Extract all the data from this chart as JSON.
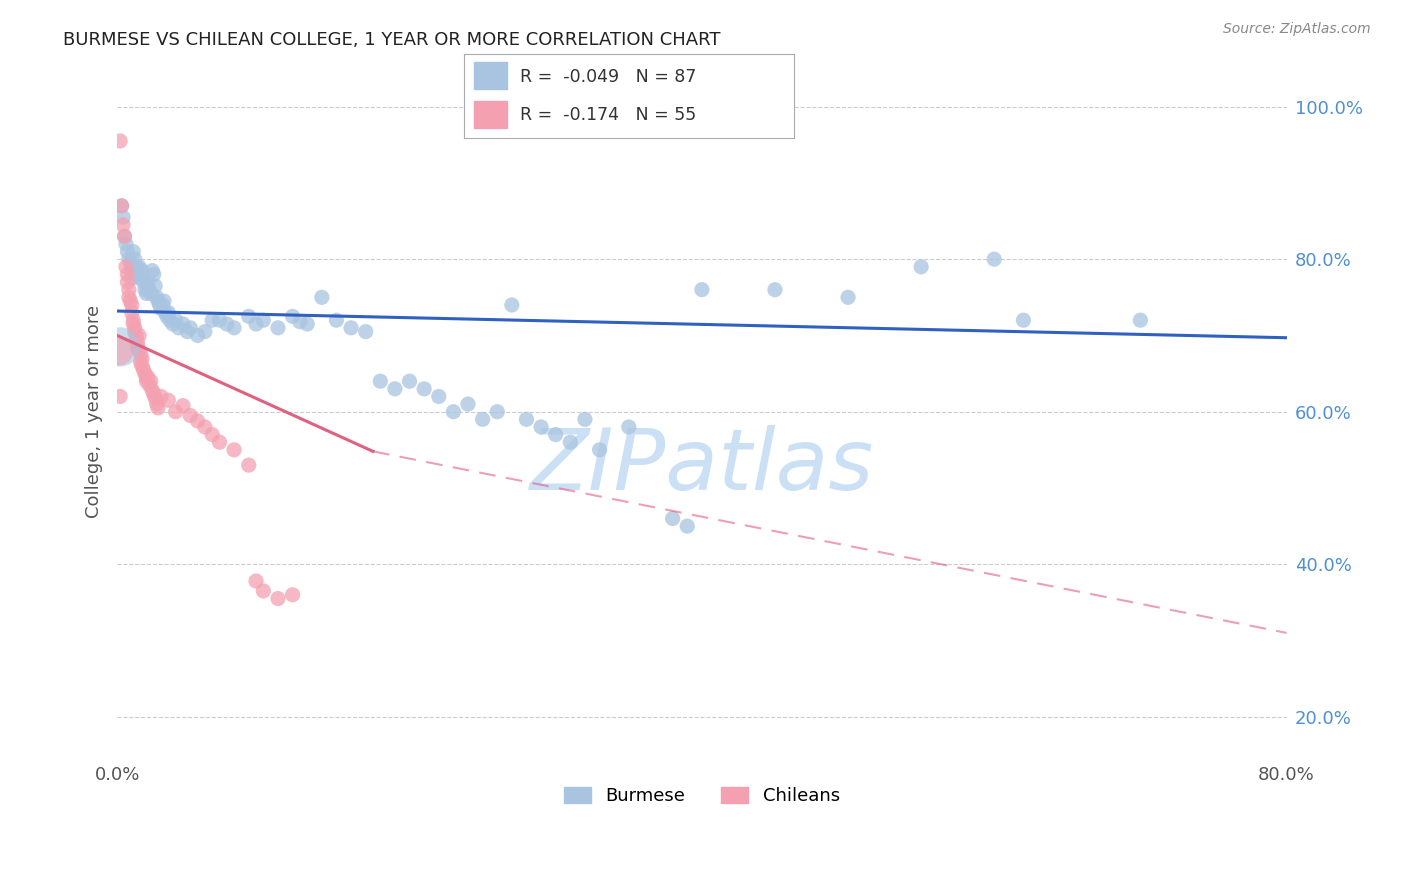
{
  "title": "BURMESE VS CHILEAN COLLEGE, 1 YEAR OR MORE CORRELATION CHART",
  "source": "Source: ZipAtlas.com",
  "ylabel_label": "College, 1 year or more",
  "legend_burmese": "Burmese",
  "legend_chileans": "Chileans",
  "R_burmese": -0.049,
  "N_burmese": 87,
  "R_chileans": -0.174,
  "N_chileans": 55,
  "burmese_color": "#a8c4e0",
  "chilean_color": "#f4a0b0",
  "burmese_line_color": "#3060c0",
  "chilean_line_color": "#e06080",
  "watermark_color": "#cce0f5",
  "right_tick_color": "#5090d0",
  "grid_color": "#cccccc",
  "xlim": [
    0.0,
    0.8
  ],
  "ylim": [
    0.15,
    1.05
  ],
  "xtick_positions": [
    0.0,
    0.8
  ],
  "xtick_labels": [
    "0.0%",
    "80.0%"
  ],
  "ytick_positions": [
    0.2,
    0.4,
    0.6,
    0.8,
    1.0
  ],
  "ytick_labels": [
    "20.0%",
    "40.0%",
    "60.0%",
    "80.0%",
    "100.0%"
  ],
  "burmese_trendline": [
    [
      0.0,
      0.732
    ],
    [
      0.8,
      0.697
    ]
  ],
  "chilean_solid_line": [
    [
      0.0,
      0.7
    ],
    [
      0.175,
      0.548
    ]
  ],
  "chilean_dashed_line": [
    [
      0.175,
      0.548
    ],
    [
      0.8,
      0.31
    ]
  ],
  "burmese_dots": [
    [
      0.003,
      0.87
    ],
    [
      0.004,
      0.855
    ],
    [
      0.005,
      0.83
    ],
    [
      0.006,
      0.82
    ],
    [
      0.007,
      0.81
    ],
    [
      0.008,
      0.8
    ],
    [
      0.009,
      0.795
    ],
    [
      0.01,
      0.788
    ],
    [
      0.01,
      0.775
    ],
    [
      0.011,
      0.81
    ],
    [
      0.012,
      0.8
    ],
    [
      0.013,
      0.79
    ],
    [
      0.014,
      0.78
    ],
    [
      0.015,
      0.79
    ],
    [
      0.016,
      0.775
    ],
    [
      0.017,
      0.785
    ],
    [
      0.018,
      0.77
    ],
    [
      0.019,
      0.76
    ],
    [
      0.02,
      0.755
    ],
    [
      0.021,
      0.77
    ],
    [
      0.022,
      0.76
    ],
    [
      0.023,
      0.755
    ],
    [
      0.024,
      0.785
    ],
    [
      0.025,
      0.78
    ],
    [
      0.026,
      0.765
    ],
    [
      0.027,
      0.75
    ],
    [
      0.028,
      0.745
    ],
    [
      0.029,
      0.74
    ],
    [
      0.03,
      0.735
    ],
    [
      0.031,
      0.74
    ],
    [
      0.032,
      0.745
    ],
    [
      0.033,
      0.73
    ],
    [
      0.034,
      0.725
    ],
    [
      0.035,
      0.73
    ],
    [
      0.036,
      0.72
    ],
    [
      0.038,
      0.715
    ],
    [
      0.04,
      0.72
    ],
    [
      0.042,
      0.71
    ],
    [
      0.045,
      0.715
    ],
    [
      0.048,
      0.705
    ],
    [
      0.05,
      0.71
    ],
    [
      0.055,
      0.7
    ],
    [
      0.06,
      0.705
    ],
    [
      0.065,
      0.72
    ],
    [
      0.07,
      0.72
    ],
    [
      0.075,
      0.715
    ],
    [
      0.08,
      0.71
    ],
    [
      0.09,
      0.725
    ],
    [
      0.095,
      0.715
    ],
    [
      0.1,
      0.72
    ],
    [
      0.11,
      0.71
    ],
    [
      0.12,
      0.725
    ],
    [
      0.125,
      0.718
    ],
    [
      0.13,
      0.715
    ],
    [
      0.14,
      0.75
    ],
    [
      0.15,
      0.72
    ],
    [
      0.16,
      0.71
    ],
    [
      0.17,
      0.705
    ],
    [
      0.18,
      0.64
    ],
    [
      0.19,
      0.63
    ],
    [
      0.2,
      0.64
    ],
    [
      0.21,
      0.63
    ],
    [
      0.22,
      0.62
    ],
    [
      0.23,
      0.6
    ],
    [
      0.24,
      0.61
    ],
    [
      0.25,
      0.59
    ],
    [
      0.26,
      0.6
    ],
    [
      0.27,
      0.74
    ],
    [
      0.28,
      0.59
    ],
    [
      0.29,
      0.58
    ],
    [
      0.3,
      0.57
    ],
    [
      0.31,
      0.56
    ],
    [
      0.32,
      0.59
    ],
    [
      0.33,
      0.55
    ],
    [
      0.35,
      0.58
    ],
    [
      0.38,
      0.46
    ],
    [
      0.39,
      0.45
    ],
    [
      0.4,
      0.76
    ],
    [
      0.45,
      0.76
    ],
    [
      0.5,
      0.75
    ],
    [
      0.55,
      0.79
    ],
    [
      0.6,
      0.8
    ],
    [
      0.62,
      0.72
    ],
    [
      0.7,
      0.72
    ]
  ],
  "chilean_dots": [
    [
      0.002,
      0.955
    ],
    [
      0.003,
      0.87
    ],
    [
      0.004,
      0.845
    ],
    [
      0.005,
      0.83
    ],
    [
      0.006,
      0.79
    ],
    [
      0.007,
      0.78
    ],
    [
      0.007,
      0.77
    ],
    [
      0.008,
      0.76
    ],
    [
      0.008,
      0.75
    ],
    [
      0.009,
      0.745
    ],
    [
      0.01,
      0.74
    ],
    [
      0.01,
      0.73
    ],
    [
      0.011,
      0.72
    ],
    [
      0.011,
      0.715
    ],
    [
      0.012,
      0.71
    ],
    [
      0.012,
      0.705
    ],
    [
      0.013,
      0.7
    ],
    [
      0.013,
      0.695
    ],
    [
      0.014,
      0.69
    ],
    [
      0.014,
      0.685
    ],
    [
      0.015,
      0.7
    ],
    [
      0.015,
      0.68
    ],
    [
      0.016,
      0.675
    ],
    [
      0.016,
      0.665
    ],
    [
      0.017,
      0.67
    ],
    [
      0.017,
      0.66
    ],
    [
      0.018,
      0.655
    ],
    [
      0.019,
      0.65
    ],
    [
      0.02,
      0.645
    ],
    [
      0.02,
      0.64
    ],
    [
      0.021,
      0.645
    ],
    [
      0.022,
      0.635
    ],
    [
      0.023,
      0.64
    ],
    [
      0.024,
      0.628
    ],
    [
      0.025,
      0.623
    ],
    [
      0.026,
      0.618
    ],
    [
      0.027,
      0.61
    ],
    [
      0.028,
      0.605
    ],
    [
      0.03,
      0.62
    ],
    [
      0.035,
      0.615
    ],
    [
      0.04,
      0.6
    ],
    [
      0.045,
      0.608
    ],
    [
      0.05,
      0.595
    ],
    [
      0.055,
      0.588
    ],
    [
      0.06,
      0.58
    ],
    [
      0.065,
      0.57
    ],
    [
      0.07,
      0.56
    ],
    [
      0.08,
      0.55
    ],
    [
      0.09,
      0.53
    ],
    [
      0.095,
      0.378
    ],
    [
      0.1,
      0.365
    ],
    [
      0.11,
      0.355
    ],
    [
      0.12,
      0.36
    ],
    [
      0.002,
      0.62
    ]
  ]
}
